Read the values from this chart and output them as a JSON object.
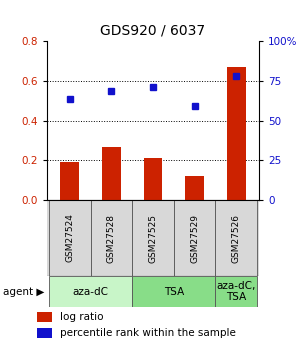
{
  "title": "GDS920 / 6037",
  "samples": [
    "GSM27524",
    "GSM27528",
    "GSM27525",
    "GSM27529",
    "GSM27526"
  ],
  "log_ratio": [
    0.19,
    0.27,
    0.21,
    0.12,
    0.67
  ],
  "percentile_rank": [
    64.0,
    69.0,
    71.0,
    59.0,
    78.0
  ],
  "bar_color": "#cc2200",
  "dot_color": "#1111cc",
  "ylim_left": [
    0,
    0.8
  ],
  "ylim_right": [
    0,
    100
  ],
  "yticks_left": [
    0,
    0.2,
    0.4,
    0.6,
    0.8
  ],
  "yticks_right": [
    0,
    25,
    50,
    75,
    100
  ],
  "agent_groups": [
    {
      "label": "aza-dC",
      "span": [
        0,
        2
      ],
      "color": "#c8f5c8"
    },
    {
      "label": "TSA",
      "span": [
        2,
        4
      ],
      "color": "#88dd88"
    },
    {
      "label": "aza-dC,\nTSA",
      "span": [
        4,
        5
      ],
      "color": "#88dd88"
    }
  ],
  "agent_label": "agent",
  "legend_bar_label": "log ratio",
  "legend_dot_label": "percentile rank within the sample",
  "title_fontsize": 10,
  "tick_fontsize": 7.5,
  "label_fontsize": 7.5,
  "sample_label_fontsize": 6.5,
  "agent_fontsize": 7.5,
  "background_color": "#ffffff"
}
